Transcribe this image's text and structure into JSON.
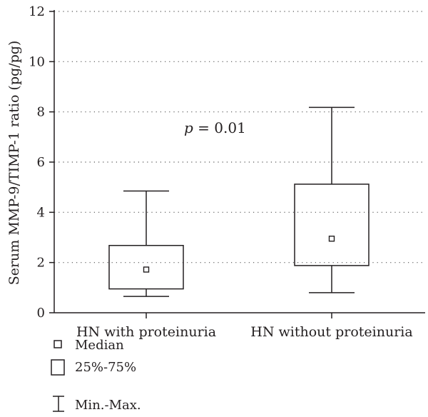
{
  "chart_data": {
    "type": "box",
    "ylabel": "Serum MMP-9/TIMP-1 ratio (pg/pg)",
    "ylim": [
      0,
      12
    ],
    "yticks": [
      0,
      2,
      4,
      6,
      8,
      10,
      12
    ],
    "grid": "horizontal-dotted",
    "categories": [
      "HN with proteinuria",
      "HN without proteinuria"
    ],
    "boxes": [
      {
        "category": "HN with proteinuria",
        "min": 0.65,
        "q1": 0.95,
        "median": 1.72,
        "q3": 2.68,
        "max": 4.85
      },
      {
        "category": "HN without proteinuria",
        "min": 0.8,
        "q1": 1.88,
        "median": 2.95,
        "q3": 5.12,
        "max": 8.18
      }
    ],
    "annotation": {
      "italic": "p",
      "rest": " = 0.01"
    },
    "legend": {
      "placement": "bottom-left",
      "items": [
        {
          "symbol": "median-square",
          "label": "Median"
        },
        {
          "symbol": "box",
          "label": "25%-75%"
        },
        {
          "symbol": "whisker",
          "label": "Min.-Max."
        }
      ]
    }
  },
  "colors": {
    "ink": "#231f20",
    "grid": "#555555",
    "background": "#ffffff"
  }
}
